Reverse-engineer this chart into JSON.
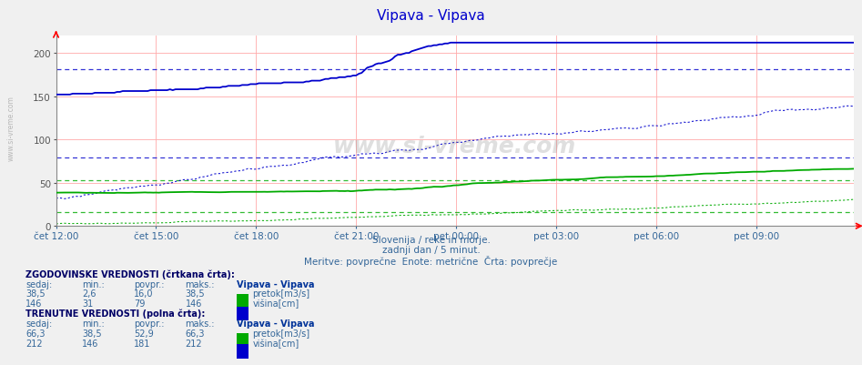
{
  "title": "Vipava - Vipava",
  "title_color": "#0000cc",
  "background_color": "#f0f0f0",
  "plot_bg_color": "#ffffff",
  "subtitle1": "Slovenija / reke in morje.",
  "subtitle2": "zadnji dan / 5 minut.",
  "subtitle3": "Meritve: povprečne  Enote: metrične  Črta: povprečje",
  "subtitle_color": "#336699",
  "watermark": "www.si-vreme.com",
  "color_flow": "#00aa00",
  "color_height": "#0000cc",
  "xlim": [
    0,
    287
  ],
  "ylim": [
    0,
    220
  ],
  "yticks": [
    0,
    50,
    100,
    150,
    200
  ],
  "xtick_labels": [
    "čet 12:00",
    "čet 15:00",
    "čet 18:00",
    "čet 21:00",
    "pet 00:00",
    "pet 03:00",
    "pet 06:00",
    "pet 09:00"
  ],
  "xtick_positions": [
    0,
    36,
    72,
    108,
    144,
    180,
    216,
    252
  ],
  "table_text_color": "#336699",
  "table_header_color": "#003399",
  "hist_flow_sedaj": "38,5",
  "hist_flow_min": "2,6",
  "hist_flow_povpr": "16,0",
  "hist_flow_maks": "38,5",
  "hist_height_sedaj": "146",
  "hist_height_min": "31",
  "hist_height_povpr": "79",
  "hist_height_maks": "146",
  "curr_flow_sedaj": "66,3",
  "curr_flow_min": "38,5",
  "curr_flow_povpr": "52,9",
  "curr_flow_maks": "66,3",
  "curr_height_sedaj": "212",
  "curr_height_min": "146",
  "curr_height_povpr": "181",
  "curr_height_maks": "212",
  "hline_hist_flow_avg": 16.0,
  "hline_hist_height_avg": 79,
  "hline_curr_flow_avg": 52.9,
  "hline_curr_height_avg": 181
}
